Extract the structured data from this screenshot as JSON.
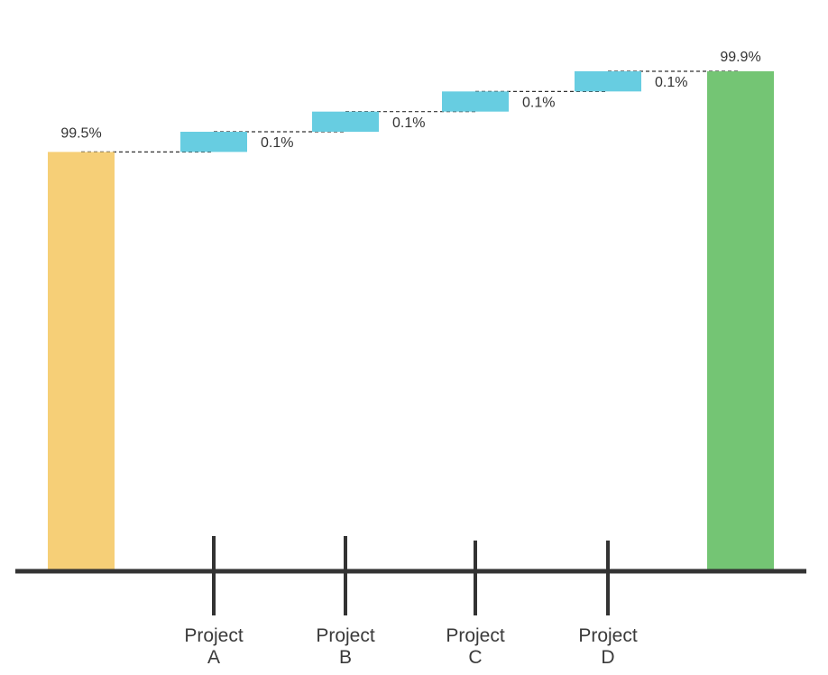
{
  "chart_data": {
    "type": "bar",
    "subtype": "waterfall",
    "title": "",
    "xlabel": "",
    "ylabel": "",
    "grid": false,
    "legend": "none",
    "ylim": [
      97.42,
      99.9
    ],
    "categories": [
      "",
      "Project A",
      "Project B",
      "Project C",
      "Project D",
      ""
    ],
    "category_lines": [
      [],
      [
        "Project",
        "A"
      ],
      [
        "Project",
        "B"
      ],
      [
        "Project",
        "C"
      ],
      [
        "Project",
        "D"
      ],
      []
    ],
    "start": {
      "value": 99.5,
      "label": "99.5%"
    },
    "steps": [
      {
        "category": "Project A",
        "delta": 0.1,
        "label": "0.1%"
      },
      {
        "category": "Project B",
        "delta": 0.1,
        "label": "0.1%"
      },
      {
        "category": "Project C",
        "delta": 0.1,
        "label": "0.1%"
      },
      {
        "category": "Project D",
        "delta": 0.1,
        "label": "0.1%"
      }
    ],
    "end": {
      "value": 99.9,
      "label": "99.9%"
    },
    "colors": {
      "start": "#F6CF77",
      "step": "#67CDE1",
      "end": "#74C574",
      "axis": "#333333",
      "connector": "#333333",
      "label": "#333333"
    }
  }
}
